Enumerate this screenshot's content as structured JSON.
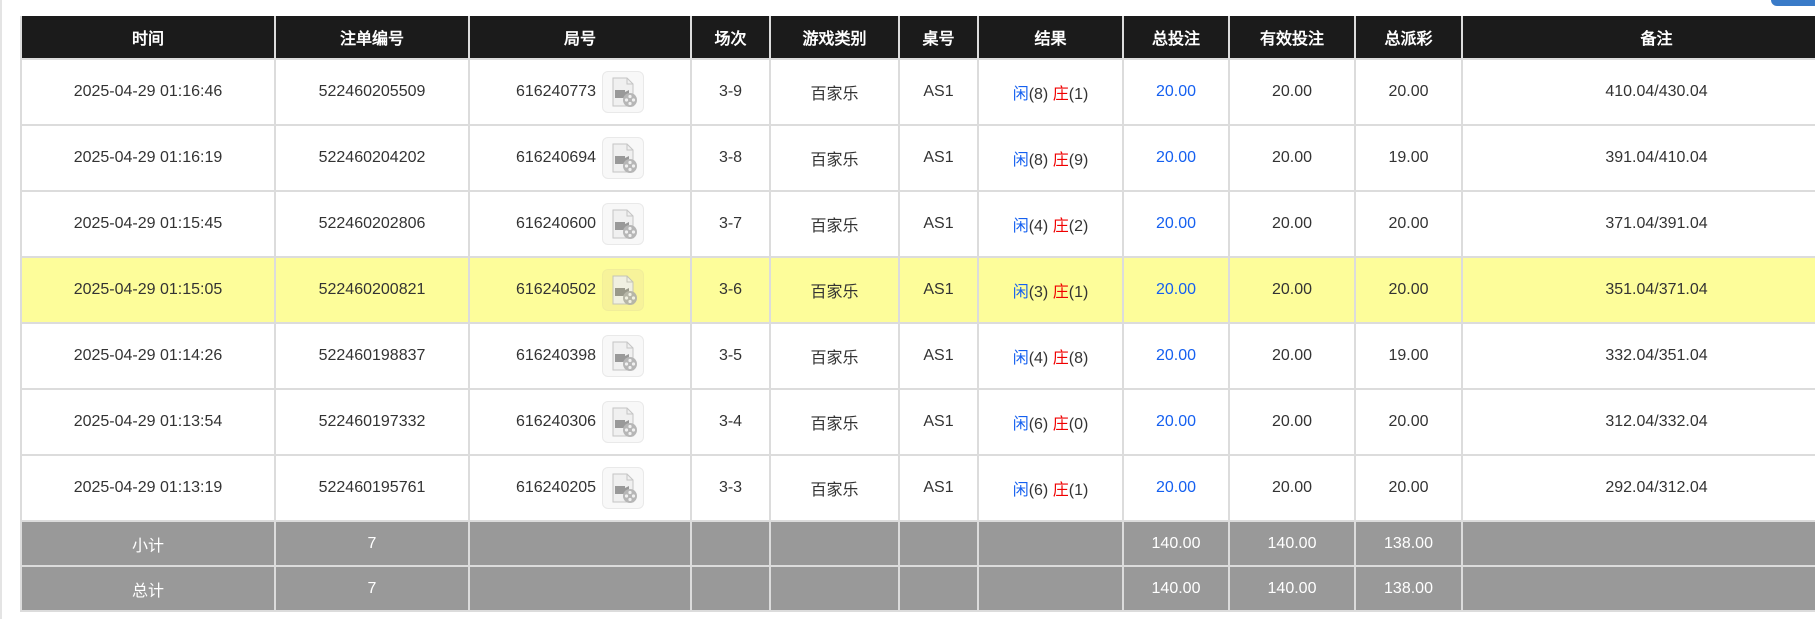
{
  "headers": [
    "时间",
    "注单编号",
    "局号",
    "场次",
    "游戏类别",
    "桌号",
    "结果",
    "总投注",
    "有效投注",
    "总派彩",
    "备注"
  ],
  "rows": [
    {
      "time": "2025-04-29 01:16:46",
      "bet_id": "522460205509",
      "round": "616240773",
      "session": "3-9",
      "game": "百家乐",
      "table": "AS1",
      "player_label": "闲",
      "player": "(8)",
      "banker_label": "庄",
      "banker": "(1)",
      "total_bet": "20.00",
      "valid_bet": "20.00",
      "payout": "20.00",
      "remark": "410.04/430.04",
      "highlighted": false
    },
    {
      "time": "2025-04-29 01:16:19",
      "bet_id": "522460204202",
      "round": "616240694",
      "session": "3-8",
      "game": "百家乐",
      "table": "AS1",
      "player_label": "闲",
      "player": "(8)",
      "banker_label": "庄",
      "banker": "(9)",
      "total_bet": "20.00",
      "valid_bet": "20.00",
      "payout": "19.00",
      "remark": "391.04/410.04",
      "highlighted": false
    },
    {
      "time": "2025-04-29 01:15:45",
      "bet_id": "522460202806",
      "round": "616240600",
      "session": "3-7",
      "game": "百家乐",
      "table": "AS1",
      "player_label": "闲",
      "player": "(4)",
      "banker_label": "庄",
      "banker": "(2)",
      "total_bet": "20.00",
      "valid_bet": "20.00",
      "payout": "20.00",
      "remark": "371.04/391.04",
      "highlighted": false
    },
    {
      "time": "2025-04-29 01:15:05",
      "bet_id": "522460200821",
      "round": "616240502",
      "session": "3-6",
      "game": "百家乐",
      "table": "AS1",
      "player_label": "闲",
      "player": "(3)",
      "banker_label": "庄",
      "banker": "(1)",
      "total_bet": "20.00",
      "valid_bet": "20.00",
      "payout": "20.00",
      "remark": "351.04/371.04",
      "highlighted": true
    },
    {
      "time": "2025-04-29 01:14:26",
      "bet_id": "522460198837",
      "round": "616240398",
      "session": "3-5",
      "game": "百家乐",
      "table": "AS1",
      "player_label": "闲",
      "player": "(4)",
      "banker_label": "庄",
      "banker": "(8)",
      "total_bet": "20.00",
      "valid_bet": "20.00",
      "payout": "19.00",
      "remark": "332.04/351.04",
      "highlighted": false
    },
    {
      "time": "2025-04-29 01:13:54",
      "bet_id": "522460197332",
      "round": "616240306",
      "session": "3-4",
      "game": "百家乐",
      "table": "AS1",
      "player_label": "闲",
      "player": "(6)",
      "banker_label": "庄",
      "banker": "(0)",
      "total_bet": "20.00",
      "valid_bet": "20.00",
      "payout": "20.00",
      "remark": "312.04/332.04",
      "highlighted": false
    },
    {
      "time": "2025-04-29 01:13:19",
      "bet_id": "522460195761",
      "round": "616240205",
      "session": "3-3",
      "game": "百家乐",
      "table": "AS1",
      "player_label": "闲",
      "player": "(6)",
      "banker_label": "庄",
      "banker": "(1)",
      "total_bet": "20.00",
      "valid_bet": "20.00",
      "payout": "20.00",
      "remark": "292.04/312.04",
      "highlighted": false
    }
  ],
  "footer": [
    {
      "label": "小计",
      "count": "7",
      "total_bet": "140.00",
      "valid_bet": "140.00",
      "payout": "138.00"
    },
    {
      "label": "总计",
      "count": "7",
      "total_bet": "140.00",
      "valid_bet": "140.00",
      "payout": "138.00"
    }
  ],
  "icons": {
    "replay": "video-file-icon"
  },
  "colors": {
    "header_bg": "#1b1b1b",
    "highlight": "#fdfd9a",
    "footer_bg": "#999999",
    "player": "#1560f0",
    "banker": "#f00000",
    "total_bet": "#1560f0"
  }
}
